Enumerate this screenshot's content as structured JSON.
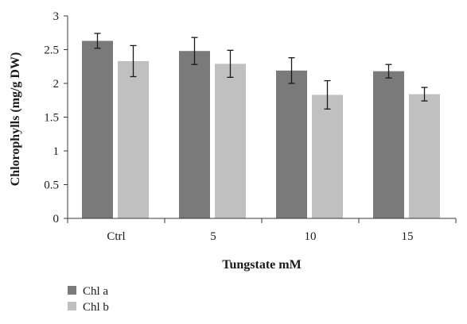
{
  "chart_data": {
    "type": "bar",
    "categories": [
      "Ctrl",
      "5",
      "10",
      "15"
    ],
    "series": [
      {
        "name": "Chl a",
        "values": [
          2.63,
          2.48,
          2.19,
          2.18
        ],
        "errors": [
          0.11,
          0.2,
          0.19,
          0.1
        ],
        "color": "#7a7a7a"
      },
      {
        "name": "Chl b",
        "values": [
          2.33,
          2.29,
          1.83,
          1.84
        ],
        "errors": [
          0.23,
          0.2,
          0.21,
          0.1
        ],
        "color": "#c0c0c0"
      }
    ],
    "xlabel": "Tungstate mM",
    "ylabel": "Chlorophylls (mg/g DW)",
    "ylim": [
      0,
      3
    ],
    "yticks": [
      0,
      0.5,
      1,
      1.5,
      2,
      2.5,
      3
    ],
    "ytick_labels": [
      "0",
      "0.5",
      "1",
      "1.5",
      "2",
      "2.5",
      "3"
    ],
    "grid": false,
    "legend_position": "bottom-left"
  }
}
